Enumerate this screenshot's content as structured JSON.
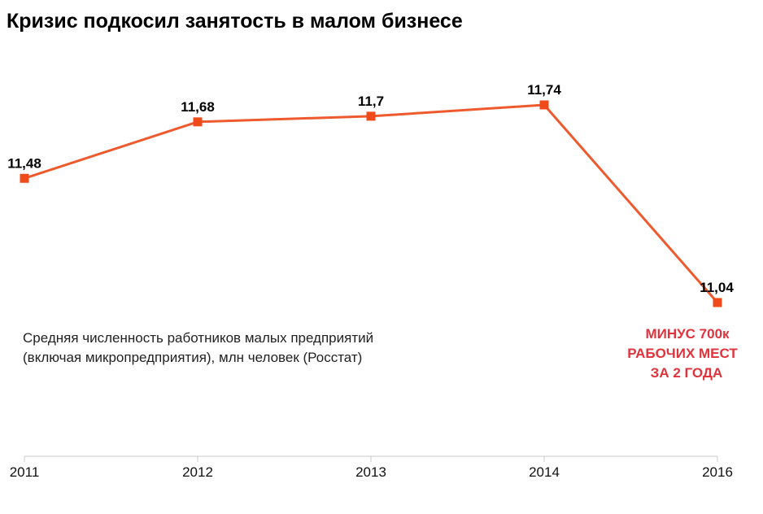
{
  "title": "Кризис подкосил занятость в малом бизнесе",
  "colors": {
    "line": "#ee5a2d",
    "marker": "#ee4a1a",
    "annotation": "#e0333c",
    "axis": "#c8c8c8"
  },
  "caption": {
    "line1": "Средняя численность работников малых предприятий",
    "line2": "(включая микропредприятия), млн человек (Росстат)"
  },
  "annotation": {
    "line1": "МИНУС 700к",
    "line2": "РАБОЧИХ МЕСТ",
    "line3": "ЗА 2 ГОДА"
  },
  "chart_data": {
    "type": "line",
    "title": "Кризис подкосил занятость в малом бизнесе",
    "categories": [
      "2011",
      "2012",
      "2013",
      "2014",
      "2016"
    ],
    "values": [
      11.48,
      11.68,
      11.7,
      11.74,
      11.04
    ],
    "data_labels": [
      "11,48",
      "11,68",
      "11,7",
      "11,74",
      "11,04"
    ],
    "xlabel": "",
    "ylabel": "",
    "grid": false,
    "legend": "none"
  }
}
